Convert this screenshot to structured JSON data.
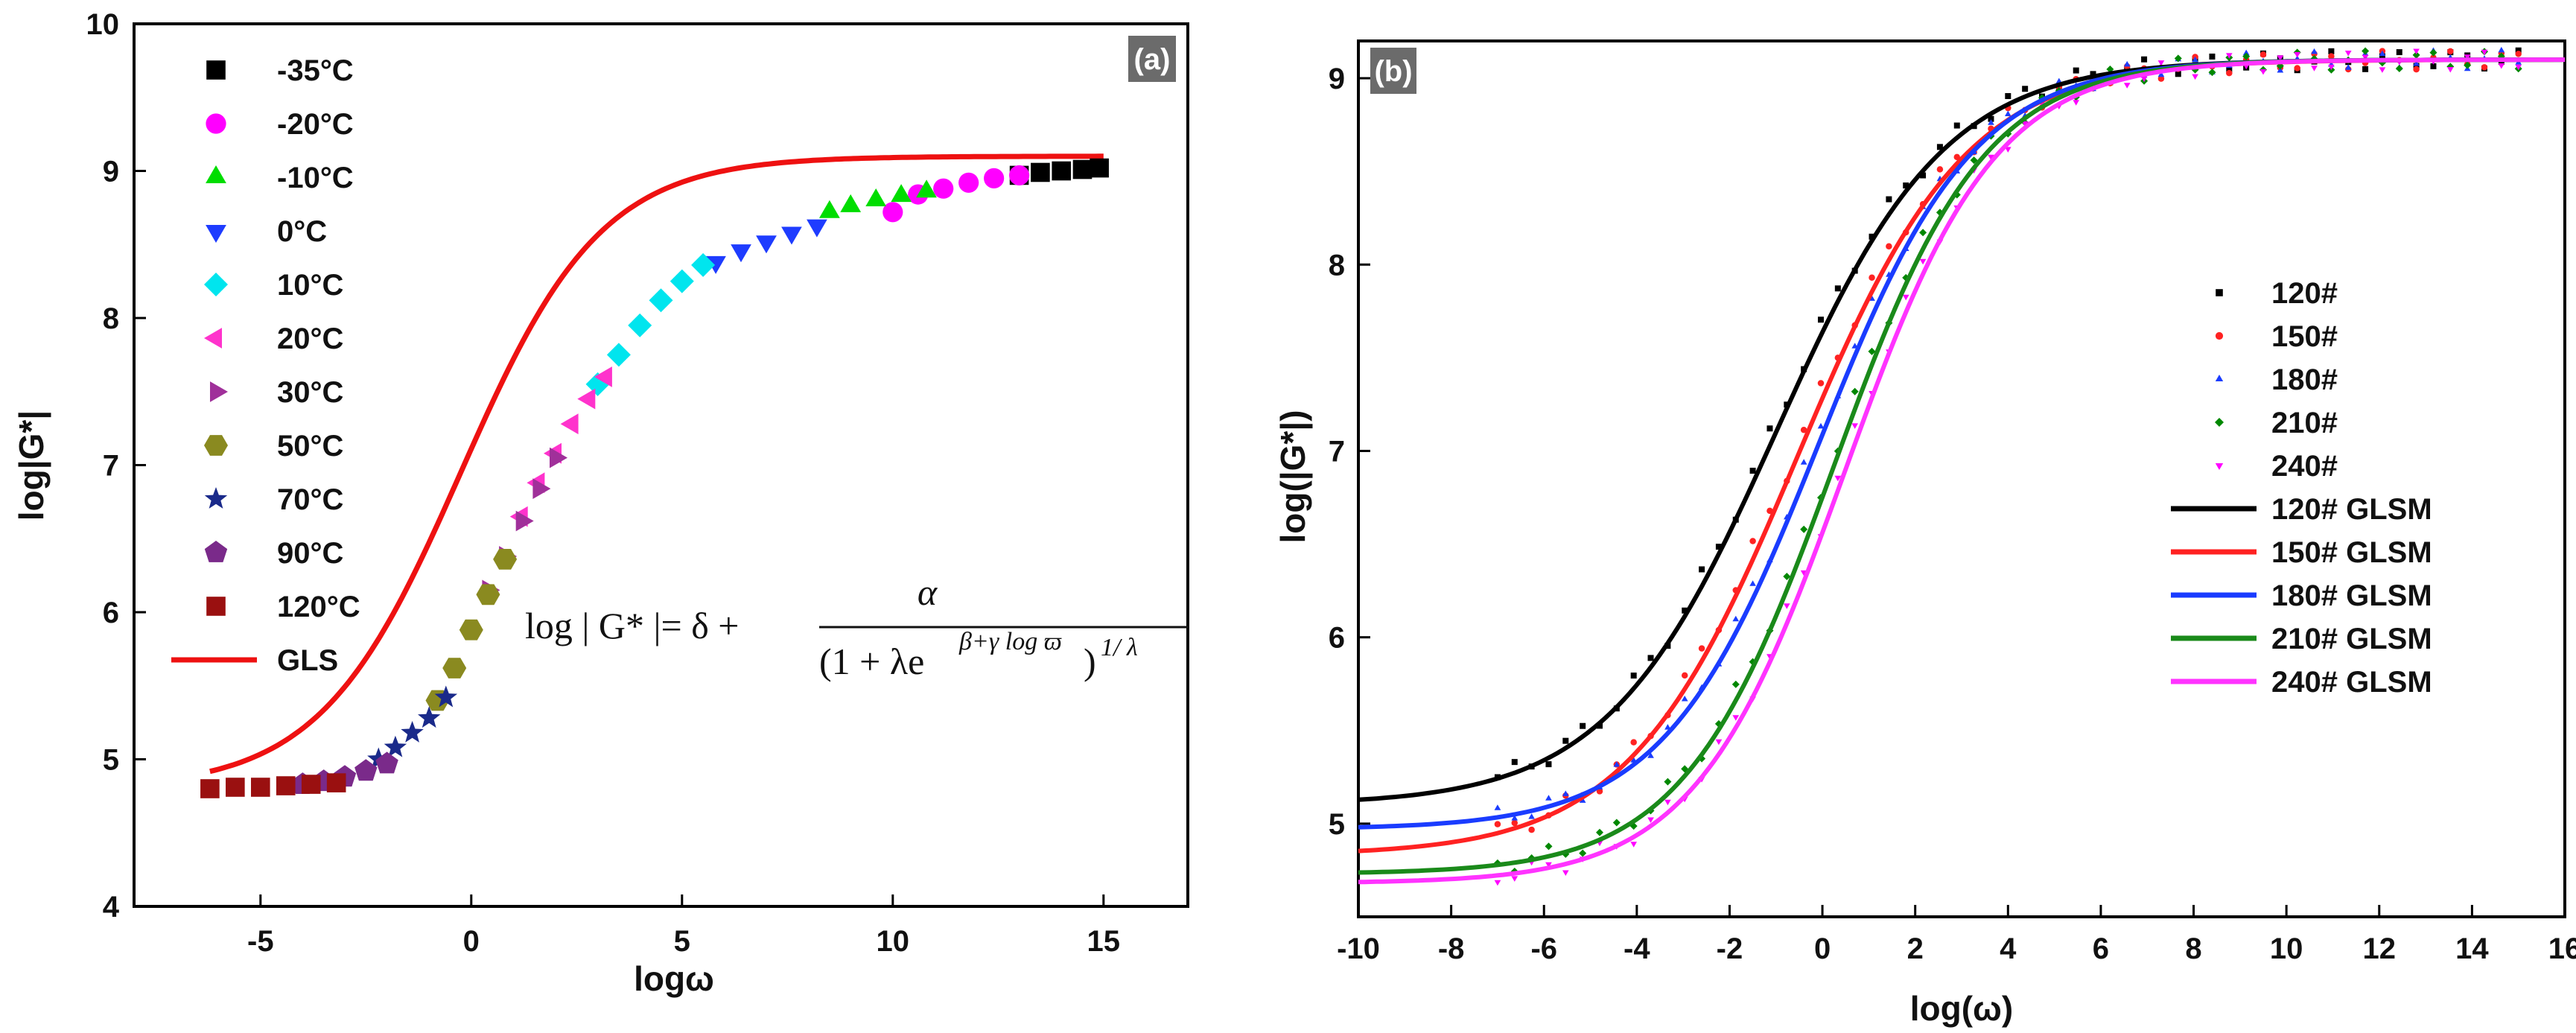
{
  "chart_data": [
    {
      "type": "scatter",
      "panel_label": "(a)",
      "title": "",
      "xlabel": "logω",
      "ylabel": "log|G*|",
      "xlim": [
        -8,
        17
      ],
      "ylim": [
        4,
        10
      ],
      "xticks": [
        -5,
        0,
        5,
        10,
        15
      ],
      "yticks": [
        4,
        5,
        6,
        7,
        8,
        9,
        10
      ],
      "equation": {
        "lhs": "log | G* |= δ +",
        "numerator": "α",
        "denominator": "(1 + λe",
        "exponent": "β+γ log ϖ",
        "power": "1/ λ"
      },
      "series": [
        {
          "name": "-35°C",
          "marker": "square",
          "color": "#000000",
          "x": [
            13.0,
            13.5,
            14.0,
            14.5,
            14.9
          ],
          "y": [
            8.97,
            8.99,
            9.0,
            9.01,
            9.02
          ]
        },
        {
          "name": "-20°C",
          "marker": "circle",
          "color": "#ff00ff",
          "x": [
            10.0,
            10.6,
            11.2,
            11.8,
            12.4,
            13.0
          ],
          "y": [
            8.72,
            8.84,
            8.88,
            8.92,
            8.95,
            8.97
          ]
        },
        {
          "name": "-10°C",
          "marker": "triangle-up",
          "color": "#00dd00",
          "x": [
            8.5,
            9.0,
            9.6,
            10.2,
            10.8
          ],
          "y": [
            8.72,
            8.76,
            8.8,
            8.83,
            8.86
          ]
        },
        {
          "name": "0°C",
          "marker": "triangle-down",
          "color": "#1e3cff",
          "x": [
            5.8,
            6.4,
            7.0,
            7.6,
            8.2
          ],
          "y": [
            8.38,
            8.46,
            8.52,
            8.58,
            8.63
          ]
        },
        {
          "name": "10°C",
          "marker": "diamond",
          "color": "#00e5ee",
          "x": [
            3.0,
            3.5,
            4.0,
            4.5,
            5.0,
            5.5
          ],
          "y": [
            7.55,
            7.75,
            7.95,
            8.12,
            8.25,
            8.36
          ]
        },
        {
          "name": "20°C",
          "marker": "triangle-left",
          "color": "#ff33cc",
          "x": [
            1.2,
            1.6,
            2.0,
            2.4,
            2.8,
            3.2
          ],
          "y": [
            6.65,
            6.88,
            7.08,
            7.28,
            7.45,
            7.6
          ]
        },
        {
          "name": "30°C",
          "marker": "triangle-right",
          "color": "#a0309a",
          "x": [
            0.4,
            0.8,
            1.2,
            1.6,
            2.0
          ],
          "y": [
            6.15,
            6.38,
            6.62,
            6.84,
            7.05
          ]
        },
        {
          "name": "50°C",
          "marker": "hexagon",
          "color": "#8a8a20",
          "x": [
            -0.8,
            -0.4,
            0.0,
            0.4,
            0.8
          ],
          "y": [
            5.4,
            5.62,
            5.88,
            6.12,
            6.36
          ]
        },
        {
          "name": "70°C",
          "marker": "star",
          "color": "#1a2a8a",
          "x": [
            -2.2,
            -1.8,
            -1.4,
            -1.0,
            -0.6
          ],
          "y": [
            5.0,
            5.08,
            5.18,
            5.28,
            5.42
          ]
        },
        {
          "name": "90°C",
          "marker": "pentagon",
          "color": "#7a2a8a",
          "x": [
            -4.0,
            -3.5,
            -3.0,
            -2.5,
            -2.0
          ],
          "y": [
            4.83,
            4.85,
            4.88,
            4.92,
            4.97
          ]
        },
        {
          "name": "120°C",
          "marker": "square",
          "color": "#9a1010",
          "x": [
            -6.2,
            -5.6,
            -5.0,
            -4.4,
            -3.8,
            -3.2
          ],
          "y": [
            4.8,
            4.81,
            4.81,
            4.82,
            4.83,
            4.84
          ]
        }
      ],
      "fit": {
        "name": "GLS",
        "color": "#ee1111",
        "x_range": [
          -6.2,
          15.0
        ],
        "model": "log|G*| = δ + α/(1+λe^(β+γ logω))^(1/λ)",
        "params": {
          "delta": 4.8,
          "alpha": 4.3,
          "lambda": 1.0,
          "beta": -0.15,
          "gamma": -0.6
        }
      }
    },
    {
      "type": "scatter",
      "panel_label": "(b)",
      "title": "",
      "xlabel": "log(ω)",
      "ylabel": "log(|G*|)",
      "xlim": [
        -10,
        16
      ],
      "ylim": [
        4.5,
        9.2
      ],
      "xticks": [
        -10,
        -8,
        -6,
        -4,
        -2,
        0,
        2,
        4,
        6,
        8,
        10,
        12,
        14,
        16
      ],
      "yticks": [
        5,
        6,
        7,
        8,
        9
      ],
      "series": [
        {
          "name": "120#",
          "color": "#000000",
          "x_start": -7.0,
          "x_end": 15.0,
          "delta": 5.1,
          "alpha": 4.0,
          "beta": -0.6,
          "gamma": -0.55
        },
        {
          "name": "150#",
          "color": "#ff2222",
          "x_start": -7.0,
          "x_end": 15.0,
          "delta": 4.83,
          "alpha": 4.27,
          "beta": -0.35,
          "gamma": -0.55
        },
        {
          "name": "180#",
          "color": "#1a3cff",
          "x_start": -7.0,
          "x_end": 15.0,
          "delta": 4.97,
          "alpha": 4.13,
          "beta": -0.1,
          "gamma": -0.6
        },
        {
          "name": "210#",
          "color": "#008800",
          "x_start": -7.0,
          "x_end": 15.0,
          "delta": 4.73,
          "alpha": 4.37,
          "beta": 0.1,
          "gamma": -0.62
        },
        {
          "name": "240#",
          "color": "#ff00ff",
          "x_start": -7.0,
          "x_end": 15.0,
          "delta": 4.68,
          "alpha": 4.42,
          "beta": 0.25,
          "gamma": -0.62
        }
      ],
      "fits": [
        {
          "name": "120# GLSM",
          "color": "#000000"
        },
        {
          "name": "150# GLSM",
          "color": "#ff2222"
        },
        {
          "name": "180# GLSM",
          "color": "#1a3cff"
        },
        {
          "name": "210# GLSM",
          "color": "#1a8a1a"
        },
        {
          "name": "240# GLSM",
          "color": "#ff33ff"
        }
      ]
    }
  ]
}
